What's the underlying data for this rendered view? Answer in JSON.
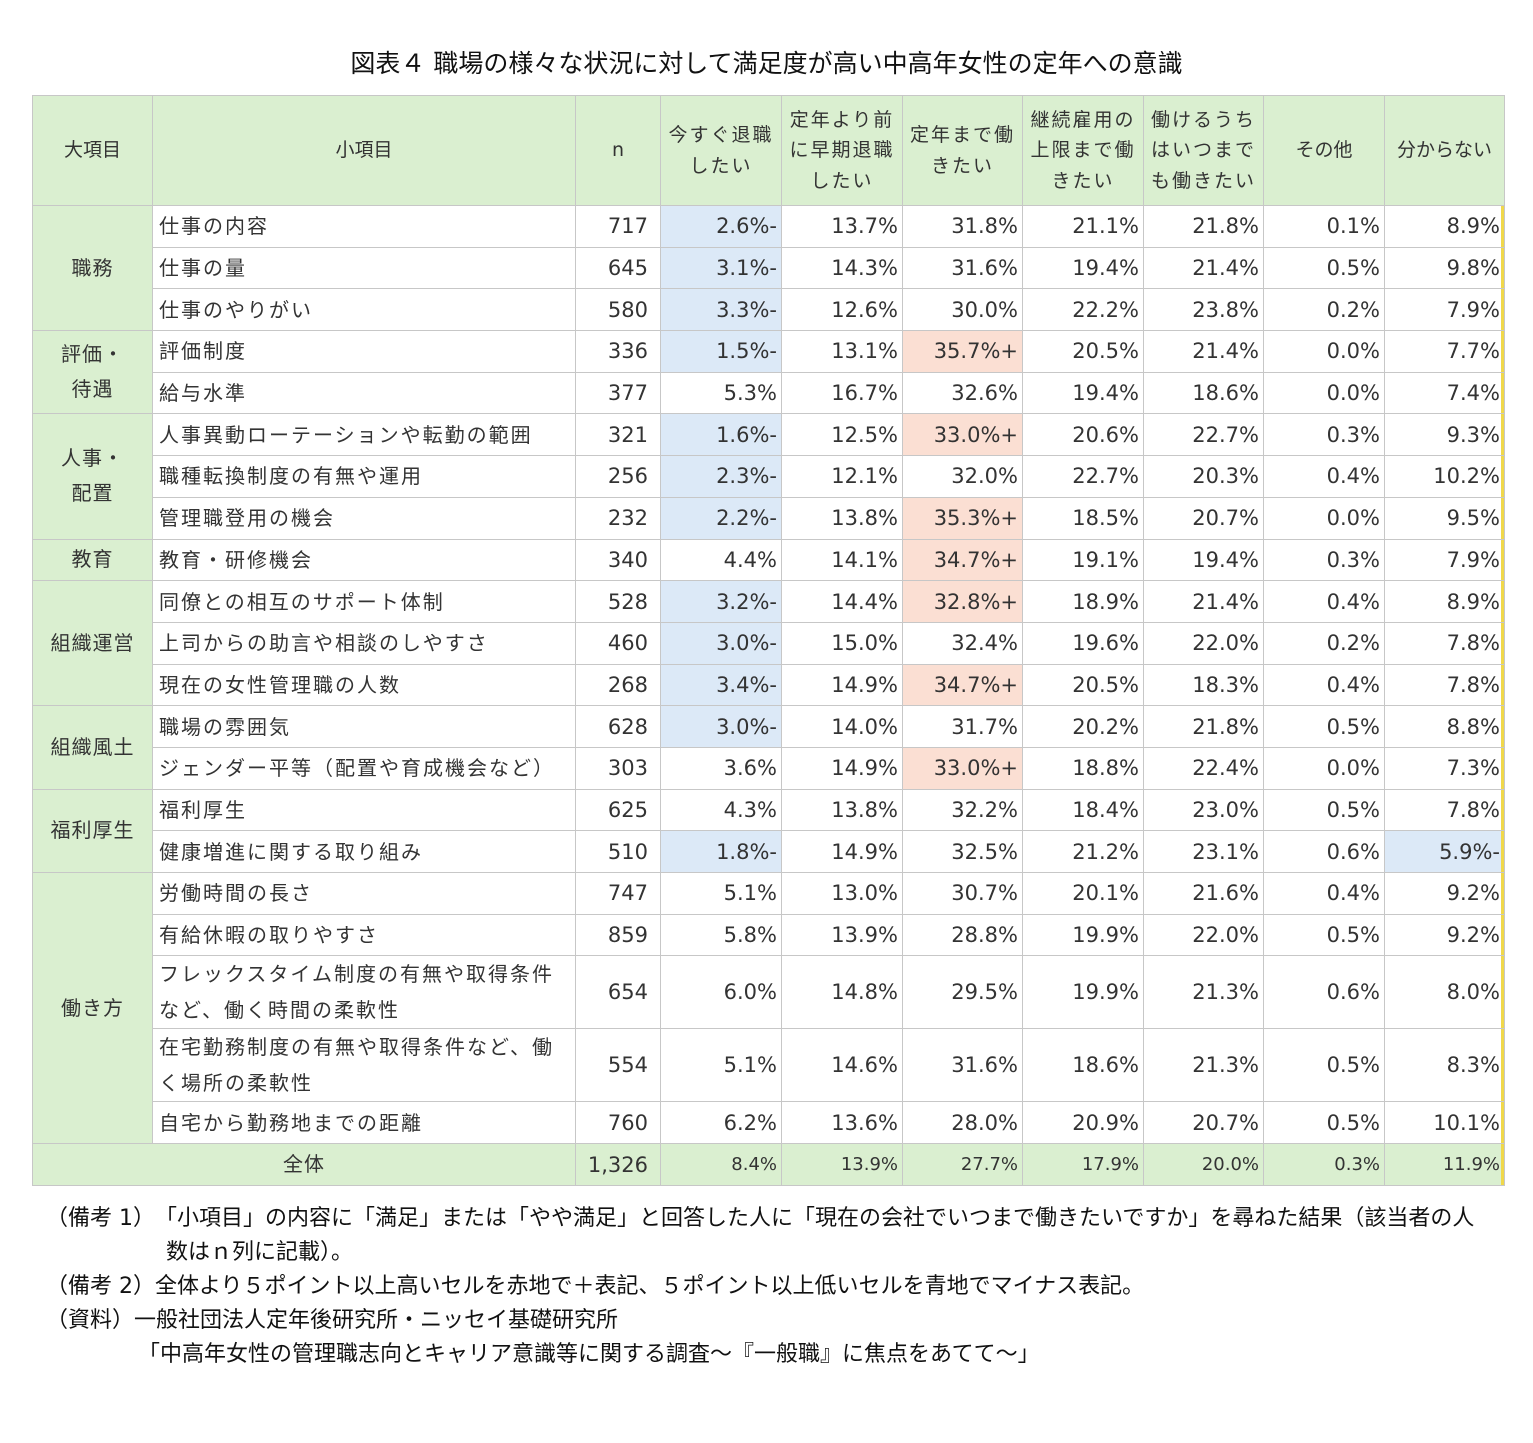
{
  "title": "図表４ 職場の様々な状況に対して満足度が高い中高年女性の定年への意識",
  "chart_data": {
    "type": "table",
    "columns": [
      "大項目",
      "小項目",
      "n",
      "今すぐ退職したい",
      "定年より前に早期退職したい",
      "定年まで働きたい",
      "継続雇用の上限まで働きたい",
      "働けるうちはいつまでも働きたい",
      "その他",
      "分からない"
    ],
    "header_lines": [
      [
        "大項目"
      ],
      [
        "小項目"
      ],
      [
        "n"
      ],
      [
        "今すぐ退職",
        "したい"
      ],
      [
        "定年より前",
        "に早期退職",
        "したい"
      ],
      [
        "定年まで働",
        "きたい"
      ],
      [
        "継続雇用の",
        "上限まで働",
        "きたい"
      ],
      [
        "働けるうち",
        "はいつまで",
        "も働きたい"
      ],
      [
        "その他"
      ],
      [
        "分からない"
      ]
    ],
    "groups": [
      {
        "category": [
          "職務"
        ],
        "rows": [
          {
            "item": "仕事の内容",
            "n": "717",
            "values": [
              "2.6%-",
              "13.7%",
              "31.8%",
              "21.1%",
              "21.8%",
              "0.1%",
              "8.9%"
            ],
            "flags": [
              "low",
              "",
              "",
              "",
              "",
              "",
              ""
            ]
          },
          {
            "item": "仕事の量",
            "n": "645",
            "values": [
              "3.1%-",
              "14.3%",
              "31.6%",
              "19.4%",
              "21.4%",
              "0.5%",
              "9.8%"
            ],
            "flags": [
              "low",
              "",
              "",
              "",
              "",
              "",
              ""
            ]
          },
          {
            "item": "仕事のやりがい",
            "n": "580",
            "values": [
              "3.3%-",
              "12.6%",
              "30.0%",
              "22.2%",
              "23.8%",
              "0.2%",
              "7.9%"
            ],
            "flags": [
              "low",
              "",
              "",
              "",
              "",
              "",
              ""
            ]
          }
        ]
      },
      {
        "category": [
          "評価・",
          "待遇"
        ],
        "rows": [
          {
            "item": " 評価制度",
            "n": "336",
            "values": [
              "1.5%-",
              "13.1%",
              "35.7%+",
              "20.5%",
              "21.4%",
              "0.0%",
              "7.7%"
            ],
            "flags": [
              "low",
              "",
              "high",
              "",
              "",
              "",
              ""
            ]
          },
          {
            "item": " 給与水準",
            "n": "377",
            "values": [
              "5.3%",
              "16.7%",
              "32.6%",
              "19.4%",
              "18.6%",
              "0.0%",
              "7.4%"
            ],
            "flags": [
              "",
              "",
              "",
              "",
              "",
              "",
              ""
            ]
          }
        ]
      },
      {
        "category": [
          "人事・",
          "配置"
        ],
        "rows": [
          {
            "item": " 人事異動ローテーションや転勤の範囲",
            "n": "321",
            "values": [
              "1.6%-",
              "12.5%",
              "33.0%+",
              "20.6%",
              "22.7%",
              "0.3%",
              "9.3%"
            ],
            "flags": [
              "low",
              "",
              "high",
              "",
              "",
              "",
              ""
            ]
          },
          {
            "item": "職種転換制度の有無や運用",
            "n": "256",
            "values": [
              "2.3%-",
              "12.1%",
              "32.0%",
              "22.7%",
              "20.3%",
              "0.4%",
              "10.2%"
            ],
            "flags": [
              "low",
              "",
              "",
              "",
              "",
              "",
              ""
            ]
          },
          {
            "item": " 管理職登用の機会",
            "n": "232",
            "values": [
              "2.2%-",
              "13.8%",
              "35.3%+",
              "18.5%",
              "20.7%",
              "0.0%",
              "9.5%"
            ],
            "flags": [
              "low",
              "",
              "high",
              "",
              "",
              "",
              ""
            ]
          }
        ]
      },
      {
        "category": [
          "教育"
        ],
        "rows": [
          {
            "item": "教育・研修機会",
            "n": "340",
            "values": [
              "4.4%",
              "14.1%",
              "34.7%+",
              "19.1%",
              "19.4%",
              "0.3%",
              "7.9%"
            ],
            "flags": [
              "",
              "",
              "high",
              "",
              "",
              "",
              ""
            ]
          }
        ]
      },
      {
        "category": [
          "組織運営"
        ],
        "rows": [
          {
            "item": " 同僚との相互のサポート体制",
            "n": "528",
            "values": [
              "3.2%-",
              "14.4%",
              "32.8%+",
              "18.9%",
              "21.4%",
              "0.4%",
              "8.9%"
            ],
            "flags": [
              "low",
              "",
              "high",
              "",
              "",
              "",
              ""
            ]
          },
          {
            "item": "上司からの助言や相談のしやすさ",
            "n": "460",
            "values": [
              "3.0%-",
              "15.0%",
              "32.4%",
              "19.6%",
              "22.0%",
              "0.2%",
              "7.8%"
            ],
            "flags": [
              "low",
              "",
              "",
              "",
              "",
              "",
              ""
            ]
          },
          {
            "item": " 現在の女性管理職の人数",
            "n": "268",
            "values": [
              "3.4%-",
              "14.9%",
              "34.7%+",
              "20.5%",
              "18.3%",
              "0.4%",
              "7.8%"
            ],
            "flags": [
              "low",
              "",
              "high",
              "",
              "",
              "",
              ""
            ]
          }
        ]
      },
      {
        "category": [
          "組織風土"
        ],
        "rows": [
          {
            "item": " 職場の雰囲気",
            "n": "628",
            "values": [
              "3.0%-",
              "14.0%",
              "31.7%",
              "20.2%",
              "21.8%",
              "0.5%",
              "8.8%"
            ],
            "flags": [
              "low",
              "",
              "",
              "",
              "",
              "",
              ""
            ]
          },
          {
            "item": " ジェンダー平等（配置や育成機会など）",
            "n": "303",
            "values": [
              "3.6%",
              "14.9%",
              "33.0%+",
              "18.8%",
              "22.4%",
              "0.0%",
              "7.3%"
            ],
            "flags": [
              "",
              "",
              "high",
              "",
              "",
              "",
              ""
            ]
          }
        ]
      },
      {
        "category": [
          "福利厚生"
        ],
        "rows": [
          {
            "item": " 福利厚生",
            "n": "625",
            "values": [
              "4.3%",
              "13.8%",
              "32.2%",
              "18.4%",
              "23.0%",
              "0.5%",
              "7.8%"
            ],
            "flags": [
              "",
              "",
              "",
              "",
              "",
              "",
              ""
            ]
          },
          {
            "item": " 健康増進に関する取り組み",
            "n": "510",
            "values": [
              "1.8%-",
              "14.9%",
              "32.5%",
              "21.2%",
              "23.1%",
              "0.6%",
              "5.9%-"
            ],
            "flags": [
              "low",
              "",
              "",
              "",
              "",
              "",
              "low"
            ]
          }
        ]
      },
      {
        "category": [
          "働き方"
        ],
        "rows": [
          {
            "item": "労働時間の長さ",
            "n": "747",
            "values": [
              "5.1%",
              "13.0%",
              "30.7%",
              "20.1%",
              "21.6%",
              "0.4%",
              "9.2%"
            ],
            "flags": [
              "",
              "",
              "",
              "",
              "",
              "",
              ""
            ]
          },
          {
            "item": " 有給休暇の取りやすさ",
            "n": "859",
            "values": [
              "5.8%",
              "13.9%",
              "28.8%",
              "19.9%",
              "22.0%",
              "0.5%",
              "9.2%"
            ],
            "flags": [
              "",
              "",
              "",
              "",
              "",
              "",
              ""
            ]
          },
          {
            "item": "フレックスタイム制度の有無や取得条件など、働く時間の柔軟性",
            "n": "654",
            "values": [
              "6.0%",
              "14.8%",
              "29.5%",
              "19.9%",
              "21.3%",
              "0.6%",
              "8.0%"
            ],
            "flags": [
              "",
              "",
              "",
              "",
              "",
              "",
              ""
            ],
            "tall": true
          },
          {
            "item": "在宅勤務制度の有無や取得条件など、働く場所の柔軟性",
            "n": "554",
            "values": [
              "5.1%",
              "14.6%",
              "31.6%",
              "18.6%",
              "21.3%",
              "0.5%",
              "8.3%"
            ],
            "flags": [
              "",
              "",
              "",
              "",
              "",
              "",
              ""
            ],
            "tall": true
          },
          {
            "item": " 自宅から勤務地までの距離",
            "n": "760",
            "values": [
              "6.2%",
              "13.6%",
              "28.0%",
              "20.9%",
              "20.7%",
              "0.5%",
              "10.1%"
            ],
            "flags": [
              "",
              "",
              "",
              "",
              "",
              "",
              ""
            ]
          }
        ]
      }
    ],
    "total": {
      "label": "全体",
      "n": "1,326",
      "values": [
        "8.4%",
        "13.9%",
        "27.7%",
        "17.9%",
        "20.0%",
        "0.3%",
        "11.9%"
      ]
    }
  },
  "notes": {
    "note1_label": "（備考 1）",
    "note1_line1": "「小項目」の内容に「満足」または「やや満足」と回答した人に「現在の会社でいつまで働きたいですか」を尋ねた結果（該当者の人",
    "note1_line2": "数はｎ列に記載）。",
    "note2_label": "（備考 2）",
    "note2_text": "全体より５ポイント以上高いセルを赤地で＋表記、５ポイント以上低いセルを青地でマイナス表記。",
    "source_label": "（資料）",
    "source_line1": "一般社団法人定年後研究所・ニッセイ基礎研究所",
    "source_line2": "「中高年女性の管理職志向とキャリア意識等に関する調査～『一般職』に焦点をあてて～」"
  }
}
